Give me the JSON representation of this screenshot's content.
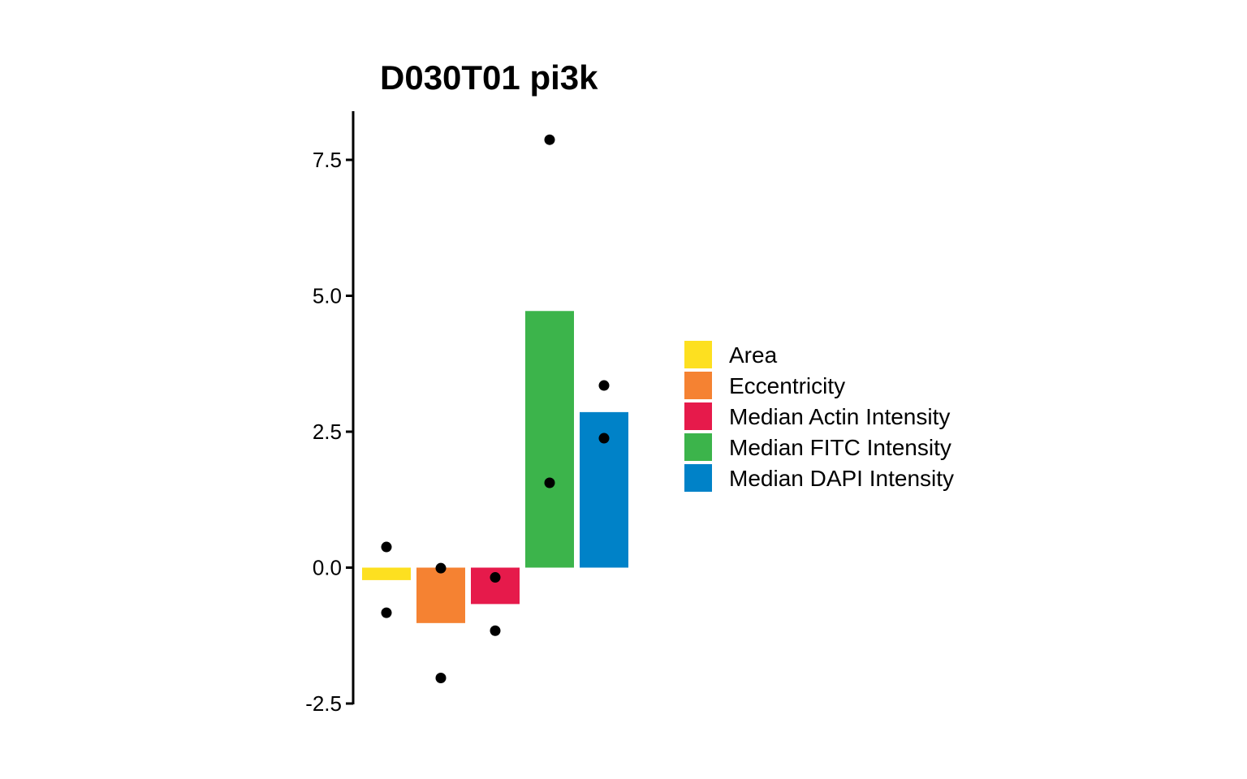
{
  "chart_data": {
    "type": "bar",
    "title": "D030T01 pi3k",
    "xlabel": "",
    "ylabel": "",
    "ylim": [
      -2.5,
      8.4
    ],
    "y_ticks": [
      -2.5,
      0.0,
      2.5,
      5.0,
      7.5
    ],
    "y_tick_labels": [
      "-2.5",
      "0.0",
      "2.5",
      "5.0",
      "7.5"
    ],
    "x_ticks_visible": false,
    "grid": false,
    "legend_position": "right",
    "categories": [
      "Area",
      "Eccentricity",
      "Median Actin Intensity",
      "Median FITC Intensity",
      "Median DAPI Intensity"
    ],
    "colors": [
      "#fde020",
      "#f58232",
      "#e61a4b",
      "#3cb44b",
      "#0082c8"
    ],
    "values": [
      -0.23,
      -1.02,
      -0.67,
      4.72,
      2.86
    ],
    "points": [
      [
        0.38,
        -0.83
      ],
      [
        -0.01,
        -2.03
      ],
      [
        -0.18,
        -1.16
      ],
      [
        7.87,
        1.56
      ],
      [
        3.35,
        2.38
      ]
    ]
  }
}
